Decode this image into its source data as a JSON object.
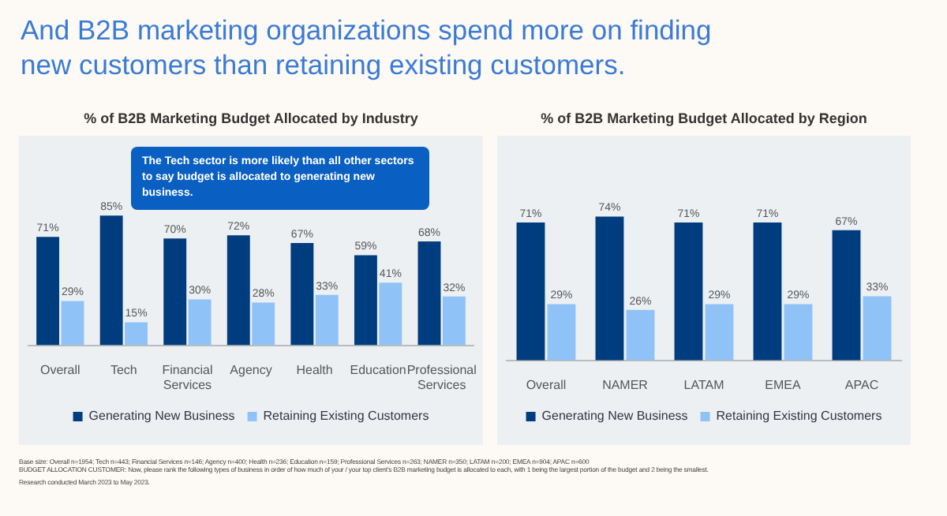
{
  "chart_data": [
    {
      "type": "bar",
      "title": "And B2B marketing organizations spend more on finding new customers than retaining existing customers.",
      "subtitle": "% of B2B Marketing Budget Allocated by Industry",
      "categories": [
        "Overall",
        "Tech",
        "Financial Services",
        "Agency",
        "Health",
        "Education",
        "Professional Services"
      ],
      "series": [
        {
          "name": "Generating New Business",
          "color": "#003d7f",
          "values": [
            71,
            85,
            70,
            72,
            67,
            59,
            68
          ],
          "value_labels": [
            "71%",
            "85%",
            "70%",
            "72%",
            "67%",
            "59%",
            "68%"
          ]
        },
        {
          "name": "Retaining Existing Customers",
          "color": "#8fc3f7",
          "values": [
            29,
            15,
            30,
            28,
            33,
            41,
            32
          ],
          "value_labels": [
            "29%",
            "15%",
            "30%",
            "28%",
            "33%",
            "41%",
            "32%"
          ]
        }
      ],
      "legend": "bottom",
      "grid": false,
      "annotations": [
        "The Tech sector is more likely than all other sectors to say budget is allocated to generating new business.",
        "Base size: Overall n=1954; Tech n=443; Financial Services n=146; Agency n=400; Health n=236; Education n=159; Professional Services n=263; NAMER n=350; LATAM n=200; EMEA n=904; APAC n=600",
        "BUDGET ALLOCATION CUSTOMER: Now, please rank the following types of business in order of how much of your / your top client's B2B marketing budget is allocated to each, with 1 being the largest portion of the budget and 2 being the smallest.",
        "Research conducted March 2023 to May 2023."
      ]
    },
    {
      "type": "bar",
      "subtitle": "% of B2B Marketing Budget Allocated by Region",
      "categories": [
        "Overall",
        "NAMER",
        "LATAM",
        "EMEA",
        "APAC"
      ],
      "series": [
        {
          "name": "Generating New Business",
          "color": "#003d7f",
          "values": [
            71,
            74,
            71,
            71,
            67
          ],
          "value_labels": [
            "71%",
            "74%",
            "71%",
            "71%",
            "67%"
          ]
        },
        {
          "name": "Retaining Existing Customers",
          "color": "#8fc3f7",
          "values": [
            29,
            26,
            29,
            29,
            33
          ],
          "value_labels": [
            "29%",
            "26%",
            "29%",
            "29%",
            "33%"
          ]
        }
      ],
      "legend": "bottom",
      "grid": false
    }
  ]
}
